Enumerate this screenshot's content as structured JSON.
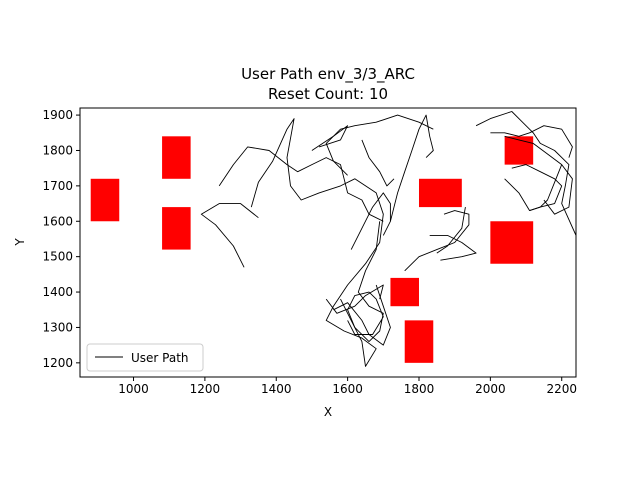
{
  "chart_data": {
    "type": "line",
    "title_line1": "User Path env_3/3_ARC",
    "title_line2": "Reset Count: 10",
    "xlabel": "X",
    "ylabel": "Y",
    "xlim": [
      850,
      2240
    ],
    "ylim": [
      1160,
      1920
    ],
    "xticks": [
      1000,
      1200,
      1400,
      1600,
      1800,
      2000,
      2200
    ],
    "yticks": [
      1200,
      1300,
      1400,
      1500,
      1600,
      1700,
      1800,
      1900
    ],
    "grid": false,
    "legend": {
      "placement": "lower-left",
      "entries": [
        {
          "label": "User Path",
          "color": "#000000"
        }
      ]
    },
    "obstacle_color": "#ff0000",
    "path_color": "#000000",
    "obstacles": [
      {
        "x0": 880,
        "x1": 960,
        "y0": 1600,
        "y1": 1720
      },
      {
        "x0": 1080,
        "x1": 1160,
        "y0": 1720,
        "y1": 1840
      },
      {
        "x0": 1080,
        "x1": 1160,
        "y0": 1520,
        "y1": 1640
      },
      {
        "x0": 1800,
        "x1": 1920,
        "y0": 1640,
        "y1": 1720
      },
      {
        "x0": 2040,
        "x1": 2120,
        "y0": 1760,
        "y1": 1840
      },
      {
        "x0": 2000,
        "x1": 2120,
        "y0": 1480,
        "y1": 1600
      },
      {
        "x0": 1720,
        "x1": 1800,
        "y0": 1360,
        "y1": 1440
      },
      {
        "x0": 1760,
        "x1": 1840,
        "y0": 1200,
        "y1": 1320
      }
    ],
    "series": [
      {
        "name": "User Path",
        "segments": [
          [
            [
              1310,
              1470
            ],
            [
              1280,
              1530
            ],
            [
              1230,
              1590
            ],
            [
              1190,
              1620
            ],
            [
              1240,
              1650
            ],
            [
              1300,
              1650
            ],
            [
              1350,
              1610
            ]
          ],
          [
            [
              1330,
              1640
            ],
            [
              1350,
              1710
            ],
            [
              1390,
              1770
            ],
            [
              1430,
              1860
            ],
            [
              1450,
              1890
            ],
            [
              1430,
              1780
            ],
            [
              1440,
              1700
            ],
            [
              1470,
              1660
            ],
            [
              1520,
              1680
            ],
            [
              1580,
              1700
            ],
            [
              1620,
              1720
            ],
            [
              1680,
              1680
            ],
            [
              1700,
              1620
            ],
            [
              1690,
              1540
            ],
            [
              1650,
              1480
            ],
            [
              1600,
              1420
            ],
            [
              1560,
              1360
            ],
            [
              1540,
              1320
            ],
            [
              1590,
              1290
            ],
            [
              1640,
              1270
            ],
            [
              1680,
              1240
            ],
            [
              1650,
              1190
            ],
            [
              1640,
              1260
            ],
            [
              1610,
              1320
            ],
            [
              1580,
              1380
            ]
          ],
          [
            [
              1240,
              1700
            ],
            [
              1280,
              1760
            ],
            [
              1320,
              1810
            ],
            [
              1380,
              1800
            ],
            [
              1430,
              1760
            ],
            [
              1460,
              1740
            ],
            [
              1500,
              1760
            ],
            [
              1540,
              1780
            ],
            [
              1580,
              1760
            ],
            [
              1590,
              1720
            ],
            [
              1600,
              1680
            ],
            [
              1640,
              1660
            ],
            [
              1660,
              1620
            ],
            [
              1700,
              1600
            ]
          ],
          [
            [
              1690,
              1600
            ],
            [
              1680,
              1520
            ],
            [
              1650,
              1460
            ],
            [
              1630,
              1400
            ],
            [
              1660,
              1360
            ],
            [
              1700,
              1340
            ],
            [
              1690,
              1290
            ],
            [
              1660,
              1260
            ],
            [
              1620,
              1300
            ],
            [
              1600,
              1350
            ],
            [
              1620,
              1390
            ],
            [
              1660,
              1400
            ],
            [
              1680,
              1380
            ],
            [
              1700,
              1330
            ],
            [
              1670,
              1280
            ],
            [
              1620,
              1280
            ],
            [
              1600,
              1320
            ]
          ],
          [
            [
              1560,
              1350
            ],
            [
              1600,
              1370
            ],
            [
              1640,
              1320
            ],
            [
              1660,
              1280
            ],
            [
              1700,
              1250
            ],
            [
              1720,
              1300
            ],
            [
              1700,
              1360
            ],
            [
              1680,
              1420
            ]
          ],
          [
            [
              1540,
              1380
            ],
            [
              1570,
              1340
            ],
            [
              1620,
              1360
            ],
            [
              1650,
              1390
            ],
            [
              1700,
              1420
            ],
            [
              1690,
              1380
            ]
          ],
          [
            [
              1610,
              1520
            ],
            [
              1640,
              1580
            ],
            [
              1670,
              1640
            ],
            [
              1700,
              1680
            ],
            [
              1720,
              1650
            ],
            [
              1720,
              1600
            ],
            [
              1700,
              1560
            ]
          ],
          [
            [
              1720,
              1600
            ],
            [
              1740,
              1680
            ],
            [
              1760,
              1740
            ],
            [
              1780,
              1800
            ],
            [
              1800,
              1860
            ],
            [
              1820,
              1900
            ],
            [
              1830,
              1840
            ],
            [
              1840,
              1800
            ],
            [
              1820,
              1780
            ]
          ],
          [
            [
              1760,
              1460
            ],
            [
              1800,
              1500
            ],
            [
              1850,
              1520
            ],
            [
              1900,
              1540
            ],
            [
              1940,
              1590
            ],
            [
              1940,
              1620
            ],
            [
              1900,
              1630
            ],
            [
              1870,
              1620
            ]
          ],
          [
            [
              1930,
              1640
            ],
            [
              1920,
              1580
            ],
            [
              1880,
              1530
            ],
            [
              1850,
              1510
            ]
          ],
          [
            [
              1830,
              1560
            ],
            [
              1880,
              1560
            ],
            [
              1920,
              1540
            ],
            [
              1960,
              1510
            ],
            [
              1920,
              1500
            ],
            [
              1860,
              1490
            ]
          ],
          [
            [
              1600,
              1730
            ],
            [
              1560,
              1770
            ],
            [
              1540,
              1820
            ],
            [
              1580,
              1860
            ],
            [
              1620,
              1870
            ],
            [
              1680,
              1880
            ],
            [
              1740,
              1900
            ],
            [
              1800,
              1880
            ],
            [
              1840,
              1860
            ]
          ],
          [
            [
              1640,
              1830
            ],
            [
              1660,
              1780
            ],
            [
              1690,
              1740
            ],
            [
              1710,
              1700
            ],
            [
              1730,
              1720
            ]
          ],
          [
            [
              1500,
              1800
            ],
            [
              1560,
              1840
            ],
            [
              1600,
              1870
            ],
            [
              1580,
              1830
            ],
            [
              1520,
              1810
            ]
          ],
          [
            [
              1960,
              1870
            ],
            [
              2000,
              1890
            ],
            [
              2060,
              1910
            ],
            [
              2090,
              1880
            ],
            [
              2120,
              1850
            ],
            [
              2140,
              1820
            ],
            [
              2180,
              1800
            ],
            [
              2220,
              1760
            ],
            [
              2210,
              1700
            ],
            [
              2200,
              1650
            ],
            [
              2240,
              1560
            ]
          ],
          [
            [
              2040,
              1840
            ],
            [
              2080,
              1830
            ],
            [
              2120,
              1820
            ],
            [
              2160,
              1790
            ],
            [
              2200,
              1760
            ],
            [
              2230,
              1720
            ],
            [
              2220,
              1640
            ],
            [
              2180,
              1620
            ],
            [
              2150,
              1660
            ]
          ],
          [
            [
              2060,
              1750
            ],
            [
              2100,
              1760
            ],
            [
              2140,
              1740
            ],
            [
              2180,
              1720
            ],
            [
              2200,
              1700
            ],
            [
              2180,
              1650
            ],
            [
              2140,
              1640
            ],
            [
              2110,
              1630
            ]
          ],
          [
            [
              2040,
              1720
            ],
            [
              2080,
              1680
            ],
            [
              2110,
              1630
            ],
            [
              2140,
              1640
            ],
            [
              2160,
              1660
            ],
            [
              2180,
              1710
            ],
            [
              2200,
              1760
            ]
          ],
          [
            [
              2000,
              1850
            ],
            [
              2040,
              1850
            ],
            [
              2080,
              1840
            ],
            [
              2110,
              1850
            ],
            [
              2150,
              1870
            ],
            [
              2200,
              1860
            ],
            [
              2230,
              1810
            ],
            [
              2220,
              1780
            ]
          ]
        ]
      }
    ]
  }
}
